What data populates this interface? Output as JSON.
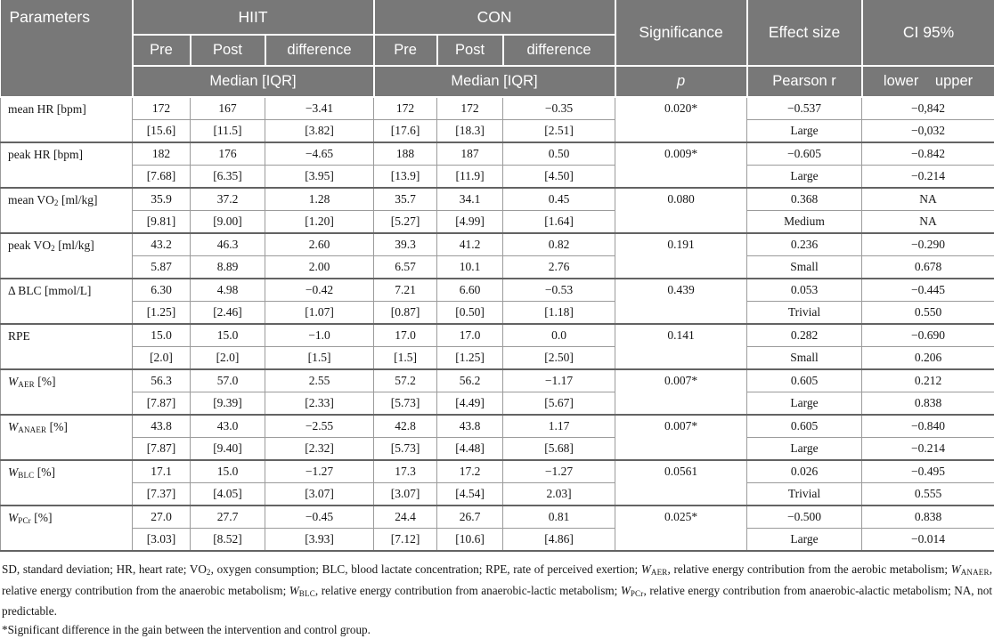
{
  "colors": {
    "header_bg": "#787878",
    "header_text": "#ffffff",
    "border_light": "#9b9b9b",
    "border_dark": "#636363",
    "body_text": "#161616"
  },
  "header": {
    "parameters": "Parameters",
    "hiit": "HIIT",
    "con": "CON",
    "significance": "Significance",
    "effect_size": "Effect size",
    "ci95": "CI 95%",
    "pre": "Pre",
    "post": "Post",
    "difference": "difference",
    "median_iqr": "Median [IQR]",
    "p": "p",
    "pearson_r": "Pearson r",
    "lower_upper": "lower upper"
  },
  "rows": [
    {
      "param": [
        {
          "t": "mean HR [bpm]"
        }
      ],
      "values": [
        "172",
        "167",
        "−3.41",
        "172",
        "172",
        "−0.35"
      ],
      "iqr": [
        "[15.6]",
        "[11.5]",
        "[3.82]",
        "[17.6]",
        "[18.3]",
        "[2.51]"
      ],
      "p": "0.020*",
      "effect": "−0.537",
      "effect_label": "Large",
      "ci_lower": "−0,842",
      "ci_upper": "−0,032"
    },
    {
      "param": [
        {
          "t": "peak HR [bpm]"
        }
      ],
      "values": [
        "182",
        "176",
        "−4.65",
        "188",
        "187",
        "0.50"
      ],
      "iqr": [
        "[7.68]",
        "[6.35]",
        "[3.95]",
        "[13.9]",
        "[11.9]",
        "[4.50]"
      ],
      "p": "0.009*",
      "effect": "−0.605",
      "effect_label": "Large",
      "ci_lower": "−0.842",
      "ci_upper": "−0.214"
    },
    {
      "param": [
        {
          "t": "mean VO"
        },
        {
          "t": "2",
          "sub": true
        },
        {
          "t": " [ml/kg]"
        }
      ],
      "values": [
        "35.9",
        "37.2",
        "1.28",
        "35.7",
        "34.1",
        "0.45"
      ],
      "iqr": [
        "[9.81]",
        "[9.00]",
        "[1.20]",
        "[5.27]",
        "[4.99]",
        "[1.64]"
      ],
      "p": "0.080",
      "effect": "0.368",
      "effect_label": "Medium",
      "ci_lower": "NA",
      "ci_upper": "NA"
    },
    {
      "param": [
        {
          "t": "peak VO"
        },
        {
          "t": "2",
          "sub": true
        },
        {
          "t": " [ml/kg]"
        }
      ],
      "values": [
        "43.2",
        "46.3",
        "2.60",
        "39.3",
        "41.2",
        "0.82"
      ],
      "iqr": [
        "5.87",
        "8.89",
        "2.00",
        "6.57",
        "10.1",
        "2.76"
      ],
      "p": "0.191",
      "effect": "0.236",
      "effect_label": "Small",
      "ci_lower": "−0.290",
      "ci_upper": "0.678"
    },
    {
      "param": [
        {
          "t": "Δ BLC [mmol/L]"
        }
      ],
      "values": [
        "6.30",
        "4.98",
        "−0.42",
        "7.21",
        "6.60",
        "−0.53"
      ],
      "iqr": [
        "[1.25]",
        "[2.46]",
        "[1.07]",
        "[0.87]",
        "[0.50]",
        "[1.18]"
      ],
      "p": "0.439",
      "effect": "0.053",
      "effect_label": "Trivial",
      "ci_lower": "−0.445",
      "ci_upper": "0.550"
    },
    {
      "param": [
        {
          "t": "RPE"
        }
      ],
      "values": [
        "15.0",
        "15.0",
        "−1.0",
        "17.0",
        "17.0",
        "0.0"
      ],
      "iqr": [
        "[2.0]",
        "[2.0]",
        "[1.5]",
        "[1.5]",
        "[1.25]",
        "[2.50]"
      ],
      "p": "0.141",
      "effect": "0.282",
      "effect_label": "Small",
      "ci_lower": "−0.690",
      "ci_upper": "0.206"
    },
    {
      "param": [
        {
          "t": "W",
          "i": true
        },
        {
          "t": "AER",
          "sub": true
        },
        {
          "t": " [%]"
        }
      ],
      "values": [
        "56.3",
        "57.0",
        "2.55",
        "57.2",
        "56.2",
        "−1.17"
      ],
      "iqr": [
        "[7.87]",
        "[9.39]",
        "[2.33]",
        "[5.73]",
        "[4.49]",
        "[5.67]"
      ],
      "p": "0.007*",
      "effect": "0.605",
      "effect_label": "Large",
      "ci_lower": "0.212",
      "ci_upper": "0.838"
    },
    {
      "param": [
        {
          "t": "W",
          "i": true
        },
        {
          "t": "ANAER",
          "sub": true
        },
        {
          "t": " [%]"
        }
      ],
      "values": [
        "43.8",
        "43.0",
        "−2.55",
        "42.8",
        "43.8",
        "1.17"
      ],
      "iqr": [
        "[7.87]",
        "[9.40]",
        "[2.32]",
        "[5.73]",
        "[4.48]",
        "[5.68]"
      ],
      "p": "0.007*",
      "effect": "0.605",
      "effect_label": "Large",
      "ci_lower": "−0.840",
      "ci_upper": "−0.214"
    },
    {
      "param": [
        {
          "t": "W",
          "i": true
        },
        {
          "t": "BLC",
          "sub": true
        },
        {
          "t": " [%]"
        }
      ],
      "values": [
        "17.1",
        "15.0",
        "−1.27",
        "17.3",
        "17.2",
        "−1.27"
      ],
      "iqr": [
        "[7.37]",
        "[4.05]",
        "[3.07]",
        "[3.07]",
        "[4.54]",
        "2.03]"
      ],
      "p": "0.0561",
      "effect": "0.026",
      "effect_label": "Trivial",
      "ci_lower": "−0.495",
      "ci_upper": "0.555"
    },
    {
      "param": [
        {
          "t": "W",
          "i": true
        },
        {
          "t": "PCr",
          "sub": true
        },
        {
          "t": " [%]"
        }
      ],
      "values": [
        "27.0",
        "27.7",
        "−0.45",
        "24.4",
        "26.7",
        "0.81"
      ],
      "iqr": [
        "[3.03]",
        "[8.52]",
        "[3.93]",
        "[7.12]",
        "[10.6]",
        "[4.86]"
      ],
      "p": "0.025*",
      "effect": "−0.500",
      "effect_label": "Large",
      "ci_lower": "0.838",
      "ci_upper": "−0.014"
    }
  ],
  "footnotes": {
    "abbrev": [
      {
        "t": "SD, standard deviation; HR, heart rate; VO"
      },
      {
        "t": "2",
        "sub": true
      },
      {
        "t": ", oxygen consumption; BLC, blood lactate concentration; RPE, rate of perceived exertion; "
      },
      {
        "t": "W",
        "i": true
      },
      {
        "t": "AER",
        "sub": true
      },
      {
        "t": ", relative energy contribution from the aerobic metabolism; "
      },
      {
        "t": "W",
        "i": true
      },
      {
        "t": "ANAER",
        "sub": true
      },
      {
        "t": ", relative energy contribution from the anaerobic metabolism; "
      },
      {
        "t": "W",
        "i": true
      },
      {
        "t": "BLC",
        "sub": true
      },
      {
        "t": ", relative energy contribution from anaerobic-lactic metabolism; "
      },
      {
        "t": "W",
        "i": true
      },
      {
        "t": "PCr",
        "sub": true
      },
      {
        "t": ", relative energy contribution from anaerobic-alactic metabolism; NA, not predictable."
      }
    ],
    "significance": [
      {
        "t": "*Significant difference in the gain between the intervention and control group."
      }
    ]
  }
}
